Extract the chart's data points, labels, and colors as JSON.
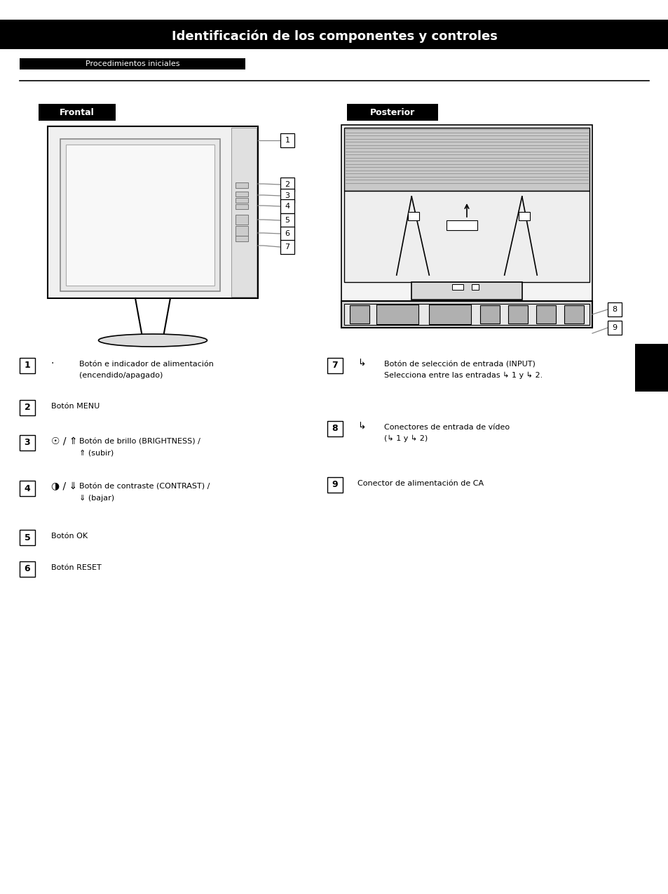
{
  "bg_color": "#ffffff",
  "page_width": 9.54,
  "page_height": 12.74,
  "header_title": "Identificación de los componentes y controles",
  "subheader_title": "Procedimientos iniciales",
  "section_front_label": "Frontal",
  "section_back_label": "Posterior",
  "items_left": [
    {
      "num": "1",
      "sym": "·",
      "lines": [
        "Botón e indicador de alimentación",
        "(encendido/apagado)"
      ]
    },
    {
      "num": "2",
      "sym": "",
      "lines": [
        "Botón MENU"
      ]
    },
    {
      "num": "3",
      "sym": "☉ / ⇑",
      "lines": [
        "Botón de brillo (BRIGHTNESS) /",
        "⇑ (subir)"
      ]
    },
    {
      "num": "4",
      "sym": "◑ / ⇓",
      "lines": [
        "Botón de contraste (CONTRAST) /",
        "⇓ (bajar)"
      ]
    },
    {
      "num": "5",
      "sym": "",
      "lines": [
        "Botón OK"
      ]
    },
    {
      "num": "6",
      "sym": "",
      "lines": [
        "Botón RESET"
      ]
    }
  ],
  "items_right": [
    {
      "num": "7",
      "sym": "↳",
      "lines": [
        "Botón de selección de entrada (INPUT)",
        "Selecciona entre las entradas ↳ 1 y ↳ 2."
      ]
    },
    {
      "num": "8",
      "sym": "↳",
      "lines": [
        "Conectores de entrada de vídeo",
        "(↳ 1 y ↳ 2)"
      ]
    },
    {
      "num": "9",
      "sym": "",
      "lines": [
        "Conector de alimentación de CA"
      ]
    }
  ]
}
